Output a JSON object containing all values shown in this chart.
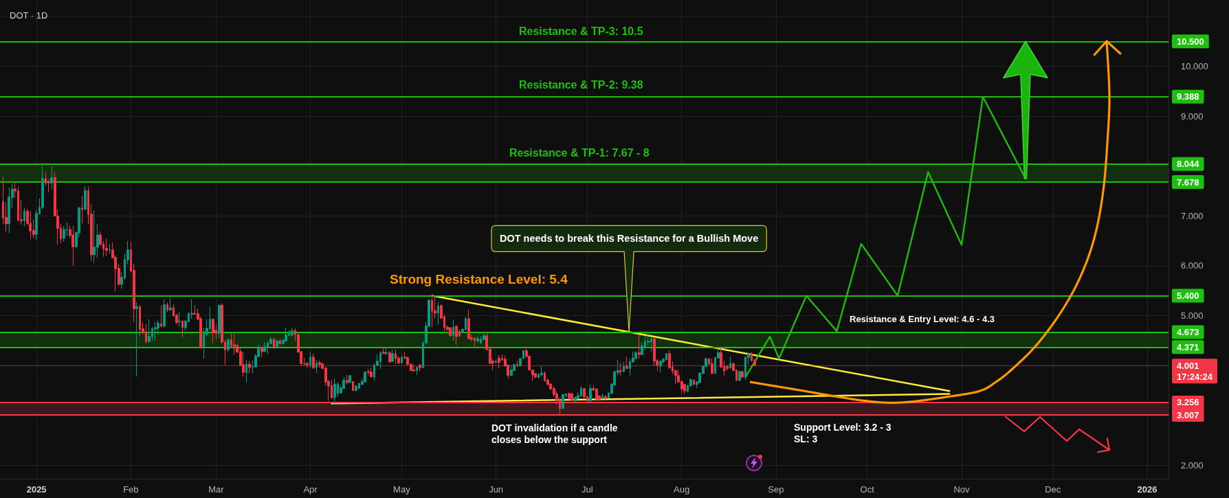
{
  "chart_data": {
    "type": "candlestick",
    "title": "DOT · 1D",
    "x": [
      "2024-12-21",
      "2024-12-22",
      "2024-12-23",
      "2024-12-24",
      "2024-12-25",
      "2024-12-26",
      "2024-12-27",
      "2024-12-28",
      "2024-12-29",
      "2024-12-30",
      "2024-12-31",
      "2025-01-01",
      "2025-01-02",
      "2025-01-03",
      "2025-01-04",
      "2025-01-05",
      "2025-01-06",
      "2025-01-07",
      "2025-01-08",
      "2025-01-09",
      "2025-01-10",
      "2025-01-11",
      "2025-01-12",
      "2025-01-13",
      "2025-01-14",
      "2025-01-15",
      "2025-01-16",
      "2025-01-17",
      "2025-01-18",
      "2025-01-19",
      "2025-01-20",
      "2025-01-21",
      "2025-01-22",
      "2025-01-23",
      "2025-01-24",
      "2025-01-25",
      "2025-01-26",
      "2025-01-27",
      "2025-01-28",
      "2025-01-29",
      "2025-01-30",
      "2025-01-31",
      "2025-02-01",
      "2025-02-02",
      "2025-02-03",
      "2025-02-04",
      "2025-02-05",
      "2025-02-06",
      "2025-02-07",
      "2025-02-08",
      "2025-02-09",
      "2025-02-10",
      "2025-02-11",
      "2025-02-12",
      "2025-02-13",
      "2025-02-14",
      "2025-02-15",
      "2025-02-16",
      "2025-02-17",
      "2025-02-18",
      "2025-02-19",
      "2025-02-20",
      "2025-02-21",
      "2025-02-22",
      "2025-02-23",
      "2025-02-24",
      "2025-02-25",
      "2025-02-26",
      "2025-02-27",
      "2025-02-28",
      "2025-03-01",
      "2025-03-02",
      "2025-03-03",
      "2025-03-04",
      "2025-03-05",
      "2025-03-06",
      "2025-03-07",
      "2025-03-08",
      "2025-03-09",
      "2025-03-10",
      "2025-03-11",
      "2025-03-12",
      "2025-03-13",
      "2025-03-14",
      "2025-03-15",
      "2025-03-16",
      "2025-03-17",
      "2025-03-18",
      "2025-03-19",
      "2025-03-20",
      "2025-03-21",
      "2025-03-22",
      "2025-03-23",
      "2025-03-24",
      "2025-03-25",
      "2025-03-26",
      "2025-03-27",
      "2025-03-28",
      "2025-03-29",
      "2025-03-30",
      "2025-03-31",
      "2025-04-01",
      "2025-04-02",
      "2025-04-03",
      "2025-04-04",
      "2025-04-05",
      "2025-04-06",
      "2025-04-07",
      "2025-04-08",
      "2025-04-09",
      "2025-04-10",
      "2025-04-11",
      "2025-04-12",
      "2025-04-13",
      "2025-04-14",
      "2025-04-15",
      "2025-04-16",
      "2025-04-17",
      "2025-04-18",
      "2025-04-19",
      "2025-04-20",
      "2025-04-21",
      "2025-04-22",
      "2025-04-23",
      "2025-04-24",
      "2025-04-25",
      "2025-04-26",
      "2025-04-27",
      "2025-04-28",
      "2025-04-29",
      "2025-04-30",
      "2025-05-01",
      "2025-05-02",
      "2025-05-03",
      "2025-05-04",
      "2025-05-05",
      "2025-05-06",
      "2025-05-07",
      "2025-05-08",
      "2025-05-09",
      "2025-05-10",
      "2025-05-11",
      "2025-05-12",
      "2025-05-13",
      "2025-05-14",
      "2025-05-15",
      "2025-05-16",
      "2025-05-17",
      "2025-05-18",
      "2025-05-19",
      "2025-05-20",
      "2025-05-21",
      "2025-05-22",
      "2025-05-23",
      "2025-05-24",
      "2025-05-25",
      "2025-05-26",
      "2025-05-27",
      "2025-05-28",
      "2025-05-29",
      "2025-05-30",
      "2025-05-31",
      "2025-06-01",
      "2025-06-02",
      "2025-06-03",
      "2025-06-04",
      "2025-06-05",
      "2025-06-06",
      "2025-06-07",
      "2025-06-08",
      "2025-06-09",
      "2025-06-10",
      "2025-06-11",
      "2025-06-12",
      "2025-06-13",
      "2025-06-14",
      "2025-06-15",
      "2025-06-16",
      "2025-06-17",
      "2025-06-18",
      "2025-06-19",
      "2025-06-20",
      "2025-06-21",
      "2025-06-22",
      "2025-06-23",
      "2025-06-24",
      "2025-06-25",
      "2025-06-26",
      "2025-06-27",
      "2025-06-28",
      "2025-06-29",
      "2025-06-30",
      "2025-07-01",
      "2025-07-02",
      "2025-07-03",
      "2025-07-04",
      "2025-07-05",
      "2025-07-06",
      "2025-07-07",
      "2025-07-08",
      "2025-07-09",
      "2025-07-10",
      "2025-07-11",
      "2025-07-12",
      "2025-07-13",
      "2025-07-14",
      "2025-07-15",
      "2025-07-16",
      "2025-07-17",
      "2025-07-18",
      "2025-07-19",
      "2025-07-20",
      "2025-07-21",
      "2025-07-22",
      "2025-07-23",
      "2025-07-24",
      "2025-07-25",
      "2025-07-26",
      "2025-07-27",
      "2025-07-28",
      "2025-07-29",
      "2025-07-30",
      "2025-07-31",
      "2025-08-01",
      "2025-08-02",
      "2025-08-03",
      "2025-08-04",
      "2025-08-05",
      "2025-08-06",
      "2025-08-07",
      "2025-08-08",
      "2025-08-09",
      "2025-08-10",
      "2025-08-11",
      "2025-08-12",
      "2025-08-13",
      "2025-08-14",
      "2025-08-15",
      "2025-08-16",
      "2025-08-17",
      "2025-08-18",
      "2025-08-19",
      "2025-08-20",
      "2025-08-21",
      "2025-08-22",
      "2025-08-23",
      "2025-08-24",
      "2025-08-25"
    ],
    "ohlc": [
      [
        7.29,
        7.79,
        6.84,
        6.96
      ],
      [
        6.97,
        7.27,
        6.68,
        6.84
      ],
      [
        6.84,
        7.57,
        6.66,
        7.38
      ],
      [
        7.37,
        7.64,
        7.16,
        7.54
      ],
      [
        7.54,
        7.67,
        7.36,
        7.5
      ],
      [
        7.5,
        7.59,
        6.88,
        6.92
      ],
      [
        6.93,
        7.31,
        6.82,
        6.9
      ],
      [
        6.9,
        7.17,
        6.79,
        7.1
      ],
      [
        7.1,
        7.14,
        6.81,
        6.85
      ],
      [
        6.85,
        7.1,
        6.53,
        6.7
      ],
      [
        6.71,
        6.93,
        6.56,
        6.63
      ],
      [
        6.63,
        7.12,
        6.52,
        7.05
      ],
      [
        7.04,
        7.35,
        7.03,
        7.17
      ],
      [
        7.17,
        8.04,
        7.14,
        7.75
      ],
      [
        7.75,
        7.88,
        7.61,
        7.66
      ],
      [
        7.68,
        7.73,
        7.47,
        7.66
      ],
      [
        7.66,
        7.99,
        7.54,
        7.77
      ],
      [
        7.77,
        7.89,
        6.99,
        7.0
      ],
      [
        7.0,
        7.13,
        6.42,
        6.75
      ],
      [
        6.76,
        6.84,
        6.45,
        6.54
      ],
      [
        6.55,
        6.8,
        6.48,
        6.73
      ],
      [
        6.72,
        6.87,
        6.59,
        6.73
      ],
      [
        6.73,
        6.81,
        6.56,
        6.61
      ],
      [
        6.62,
        6.8,
        6.0,
        6.38
      ],
      [
        6.38,
        6.69,
        6.36,
        6.67
      ],
      [
        6.66,
        7.19,
        6.56,
        7.16
      ],
      [
        7.16,
        7.4,
        6.85,
        7.13
      ],
      [
        7.13,
        7.6,
        7.12,
        7.51
      ],
      [
        7.51,
        7.59,
        6.83,
        7.03
      ],
      [
        7.04,
        7.23,
        6.1,
        6.22
      ],
      [
        6.22,
        7.11,
        6.05,
        6.38
      ],
      [
        6.37,
        6.84,
        6.16,
        6.62
      ],
      [
        6.62,
        6.69,
        6.41,
        6.43
      ],
      [
        6.44,
        6.5,
        6.18,
        6.34
      ],
      [
        6.35,
        6.54,
        6.2,
        6.31
      ],
      [
        6.32,
        6.44,
        6.24,
        6.33
      ],
      [
        6.32,
        6.47,
        6.15,
        6.16
      ],
      [
        6.17,
        6.21,
        5.49,
        5.94
      ],
      [
        5.95,
        6.03,
        5.6,
        5.63
      ],
      [
        5.63,
        5.88,
        5.54,
        5.77
      ],
      [
        5.76,
        6.25,
        5.72,
        6.13
      ],
      [
        6.12,
        6.5,
        6.04,
        6.32
      ],
      [
        6.32,
        6.49,
        5.86,
        5.89
      ],
      [
        5.91,
        6.04,
        4.87,
        5.14
      ],
      [
        5.14,
        5.27,
        3.78,
        5.18
      ],
      [
        5.18,
        5.22,
        4.58,
        4.72
      ],
      [
        4.74,
        4.86,
        4.63,
        4.66
      ],
      [
        4.68,
        4.83,
        4.44,
        4.48
      ],
      [
        4.48,
        4.93,
        4.46,
        4.59
      ],
      [
        4.58,
        4.78,
        4.49,
        4.74
      ],
      [
        4.73,
        4.88,
        4.51,
        4.76
      ],
      [
        4.75,
        4.91,
        4.62,
        4.85
      ],
      [
        4.84,
        5.21,
        4.76,
        4.79
      ],
      [
        4.79,
        5.33,
        4.76,
        5.22
      ],
      [
        5.22,
        5.27,
        5.07,
        5.11
      ],
      [
        5.11,
        5.37,
        5.1,
        5.16
      ],
      [
        5.16,
        5.23,
        4.98,
        5.0
      ],
      [
        5.01,
        5.04,
        4.83,
        4.86
      ],
      [
        4.88,
        5.07,
        4.78,
        4.89
      ],
      [
        4.89,
        4.91,
        4.56,
        4.76
      ],
      [
        4.76,
        4.91,
        4.7,
        4.89
      ],
      [
        4.88,
        5.07,
        4.87,
        5.04
      ],
      [
        5.03,
        5.33,
        4.94,
        5.05
      ],
      [
        5.05,
        5.21,
        5.02,
        5.03
      ],
      [
        5.04,
        5.14,
        4.9,
        4.93
      ],
      [
        4.94,
        4.98,
        4.34,
        4.35
      ],
      [
        4.38,
        4.75,
        4.14,
        4.64
      ],
      [
        4.63,
        4.93,
        4.59,
        4.75
      ],
      [
        4.74,
        5.18,
        4.7,
        4.93
      ],
      [
        4.93,
        4.94,
        4.45,
        4.65
      ],
      [
        4.71,
        4.82,
        4.52,
        4.65
      ],
      [
        4.65,
        5.22,
        4.56,
        5.21
      ],
      [
        5.21,
        5.25,
        4.44,
        4.47
      ],
      [
        4.47,
        4.51,
        4.01,
        4.31
      ],
      [
        4.32,
        4.54,
        4.27,
        4.52
      ],
      [
        4.52,
        4.65,
        4.35,
        4.4
      ],
      [
        4.42,
        4.66,
        4.22,
        4.39
      ],
      [
        4.4,
        4.44,
        4.25,
        4.27
      ],
      [
        4.28,
        4.35,
        3.99,
        4.01
      ],
      [
        4.02,
        4.28,
        3.78,
        3.86
      ],
      [
        3.86,
        4.12,
        3.66,
        4.03
      ],
      [
        4.03,
        4.09,
        3.85,
        3.96
      ],
      [
        3.97,
        4.1,
        3.84,
        3.99
      ],
      [
        3.97,
        4.23,
        3.96,
        4.19
      ],
      [
        4.18,
        4.42,
        4.17,
        4.34
      ],
      [
        4.36,
        4.38,
        4.17,
        4.28
      ],
      [
        4.28,
        4.47,
        4.27,
        4.38
      ],
      [
        4.36,
        4.49,
        4.23,
        4.45
      ],
      [
        4.44,
        4.58,
        4.43,
        4.53
      ],
      [
        4.53,
        4.56,
        4.33,
        4.37
      ],
      [
        4.38,
        4.53,
        4.37,
        4.49
      ],
      [
        4.49,
        4.54,
        4.41,
        4.44
      ],
      [
        4.44,
        4.53,
        4.43,
        4.51
      ],
      [
        4.49,
        4.76,
        4.48,
        4.62
      ],
      [
        4.6,
        4.71,
        4.59,
        4.63
      ],
      [
        4.61,
        4.76,
        4.59,
        4.7
      ],
      [
        4.7,
        4.75,
        4.49,
        4.62
      ],
      [
        4.62,
        4.64,
        4.26,
        4.27
      ],
      [
        4.28,
        4.29,
        3.99,
        4.04
      ],
      [
        4.04,
        4.16,
        4.0,
        4.03
      ],
      [
        4.04,
        4.08,
        3.95,
        4.01
      ],
      [
        4.01,
        4.27,
        3.95,
        4.17
      ],
      [
        4.17,
        4.24,
        3.94,
        3.95
      ],
      [
        3.96,
        4.11,
        3.85,
        4.05
      ],
      [
        4.06,
        4.1,
        3.96,
        4.02
      ],
      [
        4.04,
        4.05,
        3.93,
        3.94
      ],
      [
        3.95,
        3.97,
        3.6,
        3.67
      ],
      [
        3.68,
        3.72,
        3.29,
        3.59
      ],
      [
        3.6,
        3.71,
        3.34,
        3.35
      ],
      [
        3.36,
        3.74,
        3.23,
        3.63
      ],
      [
        3.44,
        3.67,
        3.38,
        3.63
      ],
      [
        3.45,
        3.6,
        3.44,
        3.55
      ],
      [
        3.54,
        3.77,
        3.53,
        3.71
      ],
      [
        3.7,
        3.81,
        3.62,
        3.66
      ],
      [
        3.66,
        3.81,
        3.64,
        3.8
      ],
      [
        3.68,
        3.69,
        3.49,
        3.5
      ],
      [
        3.5,
        3.61,
        3.48,
        3.59
      ],
      [
        3.54,
        3.66,
        3.53,
        3.64
      ],
      [
        3.62,
        3.74,
        3.61,
        3.68
      ],
      [
        3.67,
        3.89,
        3.66,
        3.87
      ],
      [
        3.88,
        3.93,
        3.8,
        3.86
      ],
      [
        3.87,
        3.96,
        3.76,
        3.77
      ],
      [
        3.77,
        4.04,
        3.7,
        4.01
      ],
      [
        4.0,
        4.23,
        3.99,
        4.09
      ],
      [
        4.08,
        4.29,
        3.93,
        4.26
      ],
      [
        4.27,
        4.37,
        4.23,
        4.24
      ],
      [
        4.24,
        4.36,
        4.21,
        4.26
      ],
      [
        4.26,
        4.3,
        4.06,
        4.07
      ],
      [
        4.08,
        4.32,
        4.07,
        4.24
      ],
      [
        4.24,
        4.32,
        4.03,
        4.14
      ],
      [
        4.15,
        4.19,
        4.03,
        4.05
      ],
      [
        4.05,
        4.2,
        4.04,
        4.17
      ],
      [
        4.17,
        4.27,
        4.13,
        4.15
      ],
      [
        4.16,
        4.18,
        4.01,
        4.02
      ],
      [
        4.03,
        4.04,
        3.89,
        3.9
      ],
      [
        3.91,
        4.01,
        3.88,
        3.89
      ],
      [
        3.9,
        3.98,
        3.81,
        3.97
      ],
      [
        4.01,
        4.03,
        3.88,
        3.95
      ],
      [
        3.96,
        4.49,
        3.95,
        4.45
      ],
      [
        4.45,
        4.87,
        4.44,
        4.79
      ],
      [
        4.79,
        5.33,
        4.77,
        5.31
      ],
      [
        5.31,
        5.4,
        4.77,
        5.09
      ],
      [
        5.1,
        5.4,
        4.95,
        5.05
      ],
      [
        5.05,
        5.27,
        4.82,
        5.2
      ],
      [
        5.2,
        5.23,
        4.94,
        4.95
      ],
      [
        4.98,
        5.02,
        4.69,
        4.76
      ],
      [
        4.77,
        4.81,
        4.71,
        4.72
      ],
      [
        4.76,
        4.77,
        4.58,
        4.6
      ],
      [
        4.6,
        4.92,
        4.5,
        4.77
      ],
      [
        4.79,
        4.8,
        4.41,
        4.58
      ],
      [
        4.68,
        4.72,
        4.58,
        4.59
      ],
      [
        4.66,
        4.74,
        4.65,
        4.73
      ],
      [
        4.72,
        4.98,
        4.71,
        4.94
      ],
      [
        4.94,
        5.12,
        4.53,
        4.54
      ],
      [
        4.56,
        4.62,
        4.49,
        4.53
      ],
      [
        4.55,
        4.57,
        4.36,
        4.5
      ],
      [
        4.49,
        4.61,
        4.47,
        4.54
      ],
      [
        4.45,
        4.59,
        4.44,
        4.53
      ],
      [
        4.52,
        4.64,
        4.51,
        4.6
      ],
      [
        4.6,
        4.67,
        4.31,
        4.32
      ],
      [
        4.33,
        4.36,
        4.03,
        4.04
      ],
      [
        4.09,
        4.13,
        3.91,
        4.05
      ],
      [
        4.07,
        4.12,
        4.04,
        4.09
      ],
      [
        4.15,
        4.21,
        3.94,
        4.06
      ],
      [
        4.14,
        4.22,
        4.1,
        4.11
      ],
      [
        4.13,
        4.2,
        3.98,
        3.99
      ],
      [
        4.01,
        4.02,
        3.74,
        3.8
      ],
      [
        3.8,
        4.01,
        3.79,
        3.91
      ],
      [
        3.9,
        4.04,
        3.89,
        4.02
      ],
      [
        4.02,
        4.1,
        3.97,
        3.99
      ],
      [
        4.0,
        4.15,
        3.98,
        4.14
      ],
      [
        4.14,
        4.31,
        4.13,
        4.3
      ],
      [
        4.3,
        4.34,
        4.16,
        4.18
      ],
      [
        4.19,
        4.2,
        3.9,
        3.91
      ],
      [
        3.91,
        3.92,
        3.69,
        3.81
      ],
      [
        3.84,
        3.85,
        3.74,
        3.77
      ],
      [
        3.76,
        3.85,
        3.74,
        3.82
      ],
      [
        3.81,
        3.99,
        3.8,
        3.85
      ],
      [
        3.85,
        3.88,
        3.67,
        3.7
      ],
      [
        3.71,
        3.74,
        3.6,
        3.62
      ],
      [
        3.63,
        3.64,
        3.51,
        3.53
      ],
      [
        3.54,
        3.58,
        3.38,
        3.42
      ],
      [
        3.43,
        3.49,
        3.22,
        3.3
      ],
      [
        3.32,
        3.36,
        3.03,
        3.14
      ],
      [
        3.14,
        3.43,
        3.13,
        3.42
      ],
      [
        3.4,
        3.45,
        3.35,
        3.43
      ],
      [
        3.44,
        3.46,
        3.32,
        3.35
      ],
      [
        3.43,
        3.46,
        3.3,
        3.31
      ],
      [
        3.29,
        3.39,
        3.28,
        3.36
      ],
      [
        3.35,
        3.46,
        3.32,
        3.4
      ],
      [
        3.39,
        3.59,
        3.38,
        3.54
      ],
      [
        3.54,
        3.55,
        3.36,
        3.37
      ],
      [
        3.38,
        3.39,
        3.28,
        3.29
      ],
      [
        3.29,
        3.62,
        3.25,
        3.54
      ],
      [
        3.54,
        3.6,
        3.49,
        3.51
      ],
      [
        3.53,
        3.55,
        3.31,
        3.32
      ],
      [
        3.39,
        3.41,
        3.31,
        3.32
      ],
      [
        3.35,
        3.44,
        3.32,
        3.39
      ],
      [
        3.38,
        3.41,
        3.32,
        3.34
      ],
      [
        3.35,
        3.47,
        3.34,
        3.45
      ],
      [
        3.44,
        3.64,
        3.43,
        3.63
      ],
      [
        3.61,
        3.89,
        3.6,
        3.88
      ],
      [
        3.86,
        4.11,
        3.8,
        3.9
      ],
      [
        3.9,
        4.06,
        3.8,
        3.88
      ],
      [
        3.88,
        4.08,
        3.86,
        3.99
      ],
      [
        3.99,
        4.18,
        3.93,
        3.94
      ],
      [
        3.94,
        4.13,
        3.8,
        4.08
      ],
      [
        4.07,
        4.28,
        4.06,
        4.15
      ],
      [
        4.14,
        4.29,
        4.13,
        4.26
      ],
      [
        4.26,
        4.62,
        4.14,
        4.22
      ],
      [
        4.22,
        4.47,
        4.21,
        4.4
      ],
      [
        4.36,
        4.6,
        4.31,
        4.48
      ],
      [
        4.47,
        4.66,
        4.4,
        4.49
      ],
      [
        4.47,
        4.56,
        4.27,
        4.54
      ],
      [
        4.54,
        4.55,
        3.99,
        4.09
      ],
      [
        4.1,
        4.13,
        3.89,
        4.01
      ],
      [
        3.99,
        4.1,
        3.86,
        4.09
      ],
      [
        4.08,
        4.15,
        4.04,
        4.13
      ],
      [
        4.12,
        4.25,
        4.1,
        4.24
      ],
      [
        4.24,
        4.31,
        3.94,
        3.95
      ],
      [
        3.97,
        4.08,
        3.83,
        3.89
      ],
      [
        3.9,
        3.92,
        3.63,
        3.8
      ],
      [
        3.8,
        3.91,
        3.66,
        3.67
      ],
      [
        3.68,
        3.7,
        3.45,
        3.53
      ],
      [
        3.62,
        3.63,
        3.43,
        3.49
      ],
      [
        3.48,
        3.62,
        3.46,
        3.6
      ],
      [
        3.59,
        3.74,
        3.58,
        3.72
      ],
      [
        3.71,
        3.72,
        3.61,
        3.62
      ],
      [
        3.62,
        3.69,
        3.55,
        3.67
      ],
      [
        3.66,
        3.87,
        3.65,
        3.85
      ],
      [
        3.84,
        4.0,
        3.83,
        3.99
      ],
      [
        3.98,
        4.15,
        3.97,
        4.14
      ],
      [
        4.13,
        4.16,
        4.01,
        4.03
      ],
      [
        4.04,
        4.14,
        3.83,
        3.84
      ],
      [
        3.84,
        4.18,
        3.83,
        4.16
      ],
      [
        4.15,
        4.31,
        4.14,
        4.26
      ],
      [
        4.26,
        4.37,
        3.95,
        3.97
      ],
      [
        3.98,
        4.1,
        3.8,
        3.89
      ],
      [
        3.98,
        4.01,
        3.89,
        3.94
      ],
      [
        3.95,
        4.18,
        3.94,
        4.04
      ],
      [
        4.04,
        4.06,
        3.88,
        3.9
      ],
      [
        3.91,
        3.92,
        3.69,
        3.7
      ],
      [
        3.7,
        3.9,
        3.69,
        3.88
      ],
      [
        3.88,
        3.9,
        3.76,
        3.77
      ],
      [
        3.77,
        4.18,
        3.71,
        4.17
      ],
      [
        4.16,
        4.26,
        4.03,
        4.23
      ],
      [
        4.23,
        4.27,
        4.08,
        4.1
      ],
      [
        4.1,
        4.13,
        3.98,
        4.001
      ]
    ],
    "series": [
      {
        "type": "line",
        "color": "#ffeb3b",
        "x": [
          "2025-05-11",
          "2025-10-28"
        ],
        "values": [
          5.4,
          3.49
        ]
      },
      {
        "type": "line",
        "color": "#ffeb3b",
        "x": [
          "2025-04-08",
          "2025-10-28"
        ],
        "values": [
          3.24,
          3.43
        ]
      },
      {
        "type": "line",
        "color": "#22b50f",
        "x": [
          "2025-08-22",
          "2025-08-30",
          "2025-09-02",
          "2025-09-11",
          "2025-09-21",
          "2025-09-29",
          "2025-10-11",
          "2025-10-21",
          "2025-11-01",
          "2025-11-08",
          "2025-11-22"
        ],
        "values": [
          3.77,
          4.58,
          4.14,
          5.4,
          4.69,
          6.44,
          5.4,
          7.88,
          6.42,
          9.39,
          7.75
        ]
      }
    ],
    "ref_lines": [
      {
        "axis": "y",
        "value": 10.5,
        "label": "10.500",
        "color": "#1ec00f"
      },
      {
        "axis": "y",
        "value": 9.388,
        "label": "9.388",
        "color": "#1ec00f"
      },
      {
        "axis": "y",
        "value": 8.044,
        "label": "8.044",
        "color": "#1ec00f"
      },
      {
        "axis": "y",
        "value": 7.678,
        "label": "7.678",
        "color": "#1ec00f"
      },
      {
        "axis": "y",
        "value": 5.4,
        "label": "5.400",
        "color": "#1ec00f"
      },
      {
        "axis": "y",
        "value": 4.673,
        "label": "4.673",
        "color": "#1ec00f"
      },
      {
        "axis": "y",
        "value": 4.371,
        "label": "4.371",
        "color": "#1ec00f"
      },
      {
        "axis": "y",
        "value": 4.001,
        "label": "4.001\n17:24:24",
        "color": "#f23645",
        "line_style": "dotted"
      },
      {
        "axis": "y",
        "value": 3.256,
        "label": "3.256",
        "color": "#f23645"
      },
      {
        "axis": "y",
        "value": 3.007,
        "label": "3.007",
        "color": "#f23645"
      }
    ],
    "bands": [
      {
        "axis": "y",
        "from": 7.678,
        "to": 8.044,
        "color": "#12300e"
      },
      {
        "axis": "y",
        "from": 4.371,
        "to": 4.673,
        "color": "#12300e"
      },
      {
        "axis": "y",
        "from": 3.007,
        "to": 3.256,
        "color": "#3b1a1e"
      }
    ],
    "annotations": [
      "Resistance & TP-3: 10.5",
      "Resistance & TP-2: 9.38",
      "Resistance & TP-1: 7.67 - 8",
      "DOT needs to break this Resistance for a Bullish Move",
      "Strong Resistance Level: 5.4",
      "Resistance & Entry Level: 4.6 - 4.3",
      "DOT invalidation if a candle\ncloses below the support",
      "Support Level: 3.2 - 3\nSL: 3"
    ],
    "xlim": [
      "2024-12-20",
      "2026-01-08"
    ],
    "ylim": [
      1.73,
      11.33
    ],
    "xticks": [
      {
        "value": "2025-01-01",
        "label": "2025"
      },
      {
        "value": "2025-02-01",
        "label": "Feb"
      },
      {
        "value": "2025-03-01",
        "label": "Mar"
      },
      {
        "value": "2025-04-01",
        "label": "Apr"
      },
      {
        "value": "2025-05-01",
        "label": "May"
      },
      {
        "value": "2025-06-01",
        "label": "Jun"
      },
      {
        "value": "2025-07-01",
        "label": "Jul"
      },
      {
        "value": "2025-08-01",
        "label": "Aug"
      },
      {
        "value": "2025-09-01",
        "label": "Sep"
      },
      {
        "value": "2025-10-01",
        "label": "Oct"
      },
      {
        "value": "2025-11-01",
        "label": "Nov"
      },
      {
        "value": "2025-12-01",
        "label": "Dec"
      },
      {
        "value": "2026-01-01",
        "label": "2026"
      }
    ],
    "yticks": [
      {
        "value": 2,
        "label": "2.000"
      },
      {
        "value": 3,
        "label": null
      },
      {
        "value": 4,
        "label": null
      },
      {
        "value": 5,
        "label": "5.000"
      },
      {
        "value": 6,
        "label": "6.000"
      },
      {
        "value": 7,
        "label": "7.000"
      },
      {
        "value": 9,
        "label": "9.000"
      },
      {
        "value": 10,
        "label": "10.000"
      },
      {
        "value": 11,
        "label": null
      }
    ],
    "grid": true,
    "marker": "none"
  }
}
